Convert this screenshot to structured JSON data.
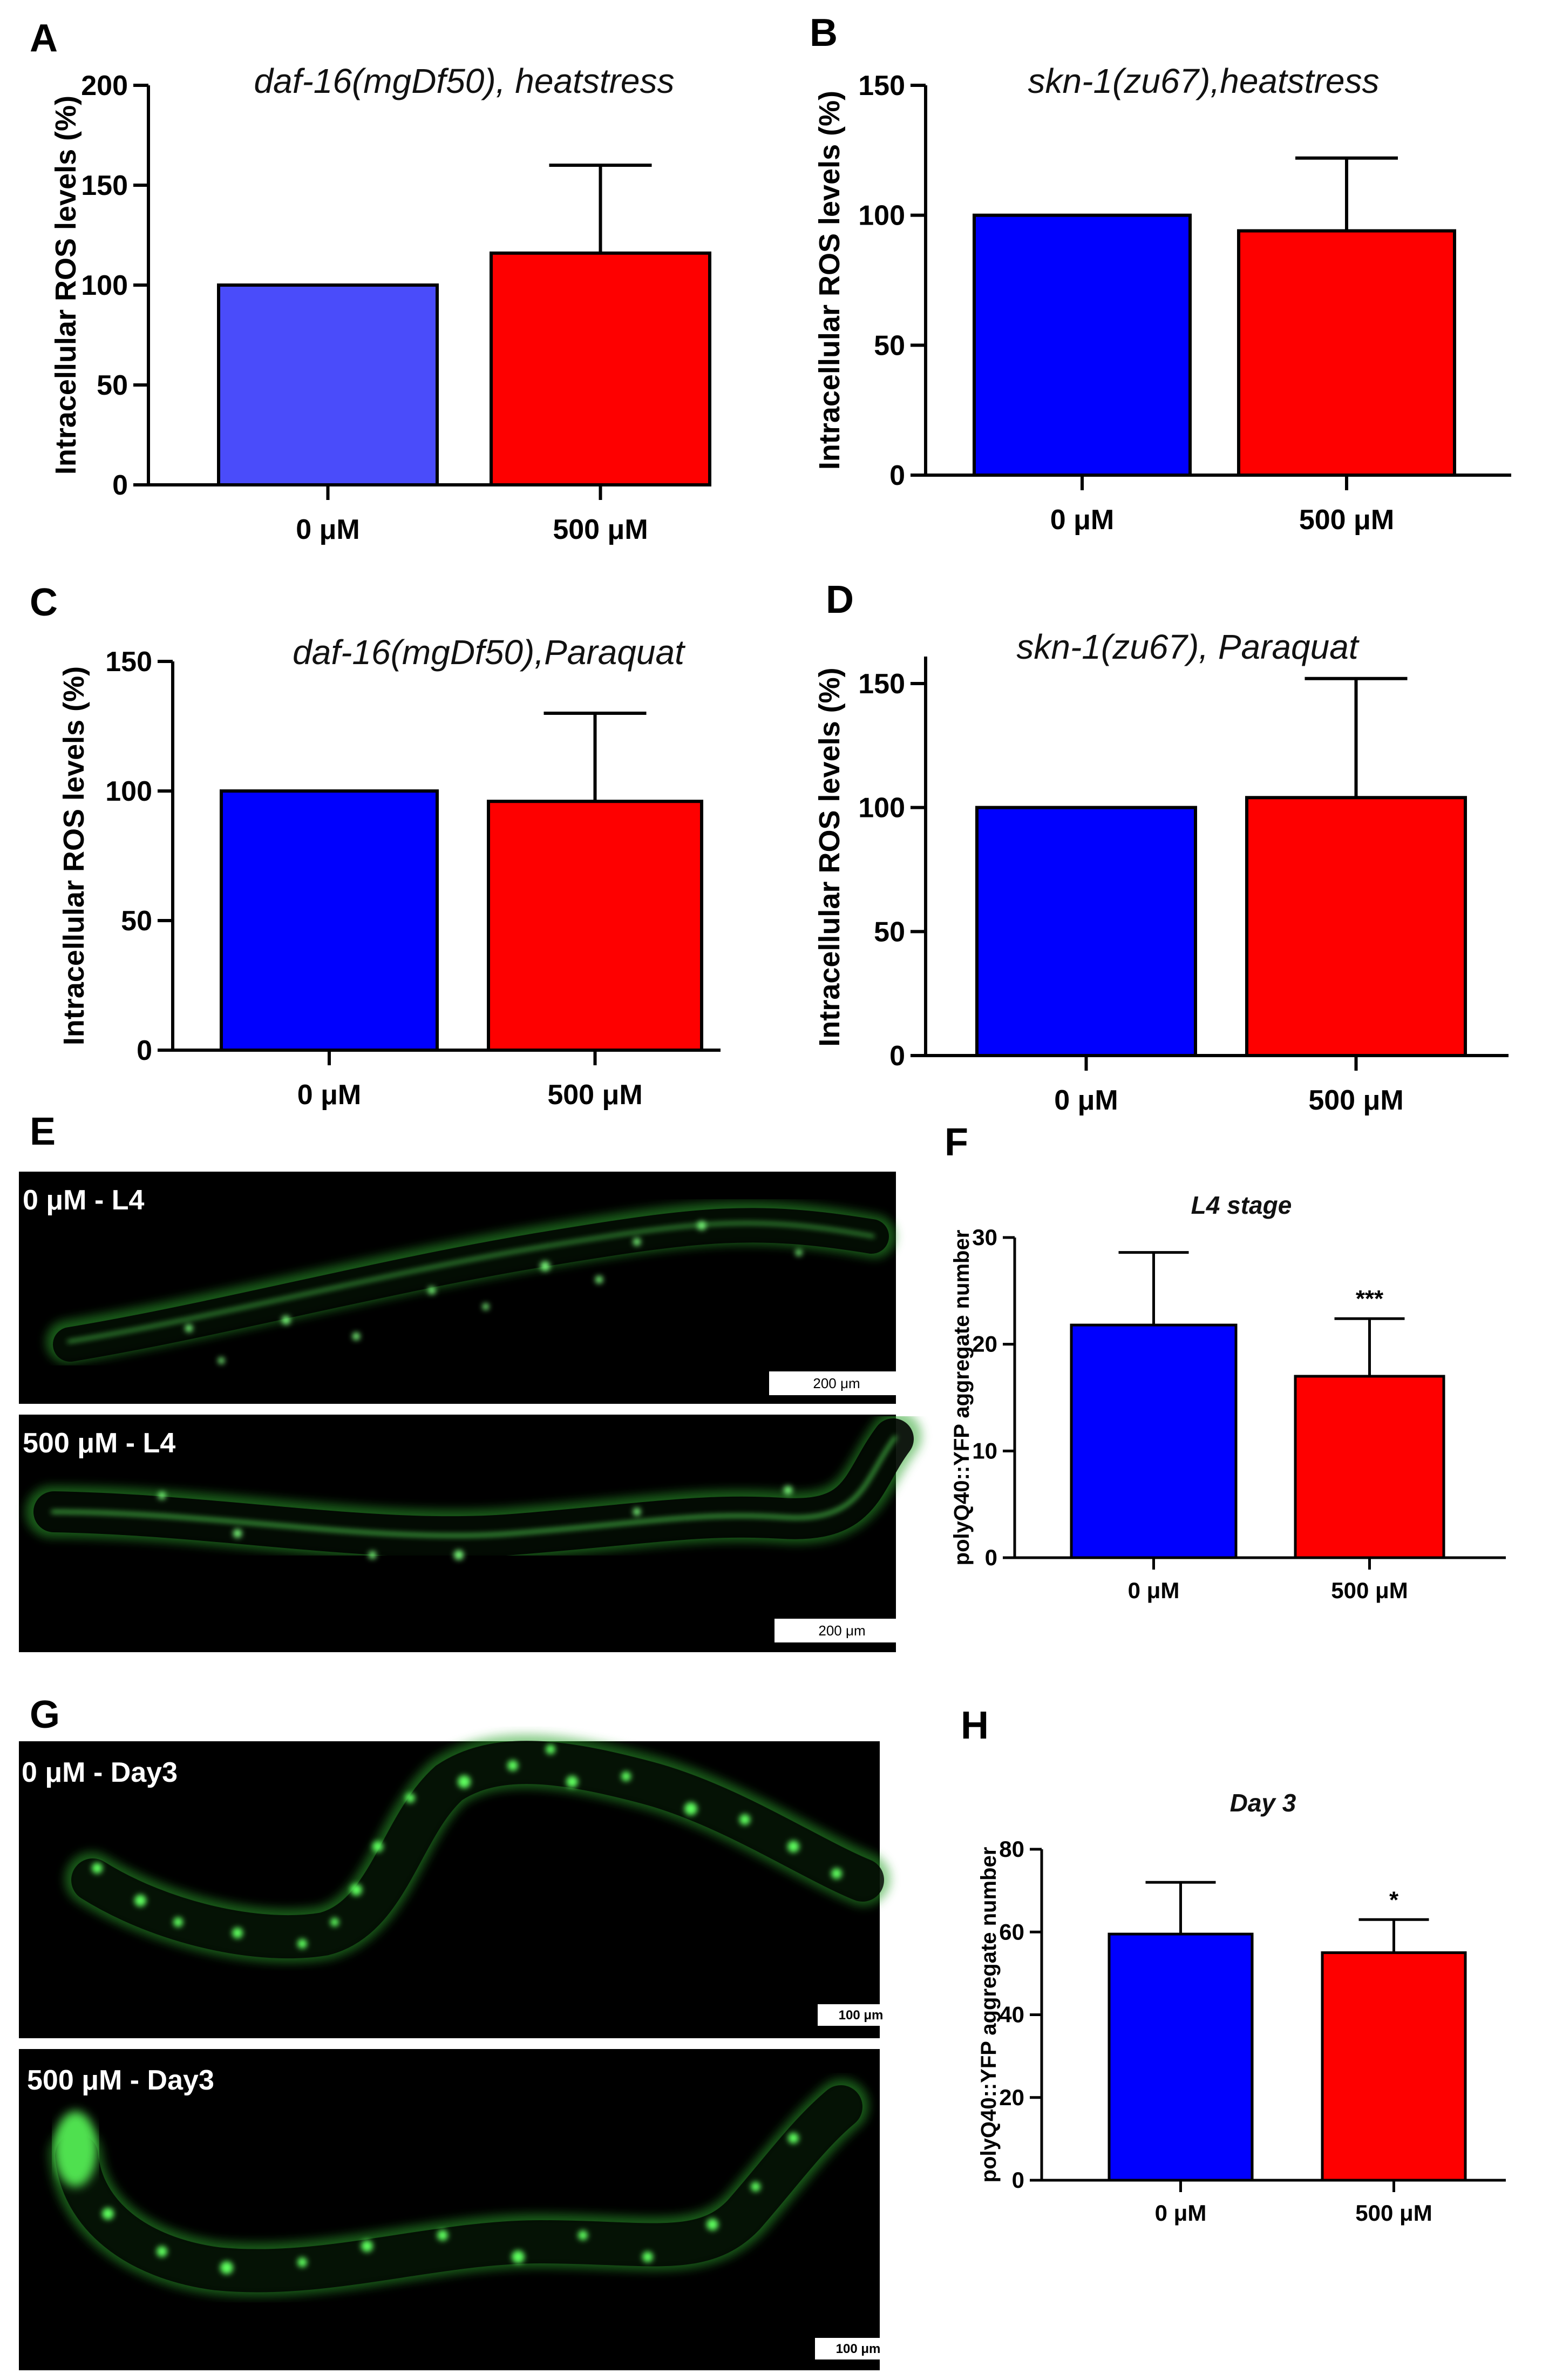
{
  "colors": {
    "blue": "#0000fe",
    "blue_a": "#4a4cfa",
    "red": "#fe0000",
    "black": "#000000",
    "worm_green": "#3fd23f"
  },
  "panels": {
    "A": "A",
    "B": "B",
    "C": "C",
    "D": "D",
    "E": "E",
    "F": "F",
    "G": "G",
    "H": "H"
  },
  "chart_data": [
    {
      "id": "A",
      "type": "bar",
      "title": "daf-16(mgDf50), heatstress",
      "ylabel": "Intracellular ROS levels (%)",
      "categories": [
        "0 μM",
        "500 μM"
      ],
      "values": [
        100,
        116
      ],
      "errors": [
        0,
        44
      ],
      "ylim": [
        0,
        200
      ],
      "yticks": [
        0,
        50,
        100,
        150,
        200
      ],
      "ytick_labels": [
        "0",
        "50",
        "100",
        "150",
        "200"
      ],
      "colors": [
        "#4a4cfa",
        "#fe0000"
      ],
      "significance": [
        "",
        ""
      ]
    },
    {
      "id": "B",
      "type": "bar",
      "title": "skn-1(zu67),heatstress",
      "ylabel": "Intracellular ROS levels (%)",
      "categories": [
        "0 μM",
        "500 μM"
      ],
      "values": [
        100,
        94
      ],
      "errors": [
        0,
        28
      ],
      "ylim": [
        0,
        150
      ],
      "yticks": [
        0,
        50,
        100,
        150
      ],
      "ytick_labels": [
        "0",
        "50",
        "100",
        "150"
      ],
      "colors": [
        "#0000fe",
        "#fe0000"
      ],
      "significance": [
        "",
        ""
      ]
    },
    {
      "id": "C",
      "type": "bar",
      "title": "daf-16(mgDf50),Paraquat",
      "ylabel": "Intracellular ROS levels (%)",
      "categories": [
        "0 μM",
        "500 μM"
      ],
      "values": [
        100,
        96
      ],
      "errors": [
        0,
        34
      ],
      "ylim": [
        0,
        150
      ],
      "yticks": [
        0,
        50,
        100,
        150
      ],
      "ytick_labels": [
        "0",
        "50",
        "100",
        "150"
      ],
      "colors": [
        "#0000fe",
        "#fe0000"
      ],
      "significance": [
        "",
        ""
      ]
    },
    {
      "id": "D",
      "type": "bar",
      "title": "skn-1(zu67), Paraquat",
      "ylabel": "Intracellular ROS levels (%)",
      "categories": [
        "0 μM",
        "500 μM"
      ],
      "values": [
        100,
        104
      ],
      "errors": [
        0,
        48
      ],
      "ylim": [
        0,
        160
      ],
      "yticks": [
        0,
        50,
        100,
        150
      ],
      "ytick_labels": [
        "0",
        "50",
        "100",
        "150"
      ],
      "colors": [
        "#0000fe",
        "#fe0000"
      ],
      "significance": [
        "",
        ""
      ]
    },
    {
      "id": "F",
      "type": "bar",
      "title": "L4 stage",
      "ylabel": "polyQ40::YFP aggregate number",
      "categories": [
        "0 μM",
        "500 μM"
      ],
      "values": [
        21.8,
        17.0
      ],
      "errors": [
        6.8,
        5.4
      ],
      "ylim": [
        0,
        30
      ],
      "yticks": [
        0,
        10,
        20,
        30
      ],
      "ytick_labels": [
        "0",
        "10",
        "20",
        "30"
      ],
      "colors": [
        "#0000fe",
        "#fe0000"
      ],
      "significance": [
        "",
        "***"
      ]
    },
    {
      "id": "H",
      "type": "bar",
      "title": "Day 3",
      "ylabel": "polyQ40::YFP aggregate number",
      "categories": [
        "0 μM",
        "500 μM"
      ],
      "values": [
        59.5,
        55.0
      ],
      "errors": [
        12.5,
        8.0
      ],
      "ylim": [
        0,
        80
      ],
      "yticks": [
        0,
        20,
        40,
        60,
        80
      ],
      "ytick_labels": [
        "0",
        "20",
        "40",
        "60",
        "80"
      ],
      "colors": [
        "#0000fe",
        "#fe0000"
      ],
      "significance": [
        "",
        "*"
      ]
    }
  ],
  "images": {
    "E_top": {
      "label": "0 μM - L4",
      "scale_bar": "200 μm"
    },
    "E_bottom": {
      "label": "500 μM - L4",
      "scale_bar": "200 μm"
    },
    "G_top": {
      "label": "0 μM - Day3",
      "scale_bar": "100 μm"
    },
    "G_bottom": {
      "label": "500 μM - Day3",
      "scale_bar": "100 μm"
    }
  }
}
